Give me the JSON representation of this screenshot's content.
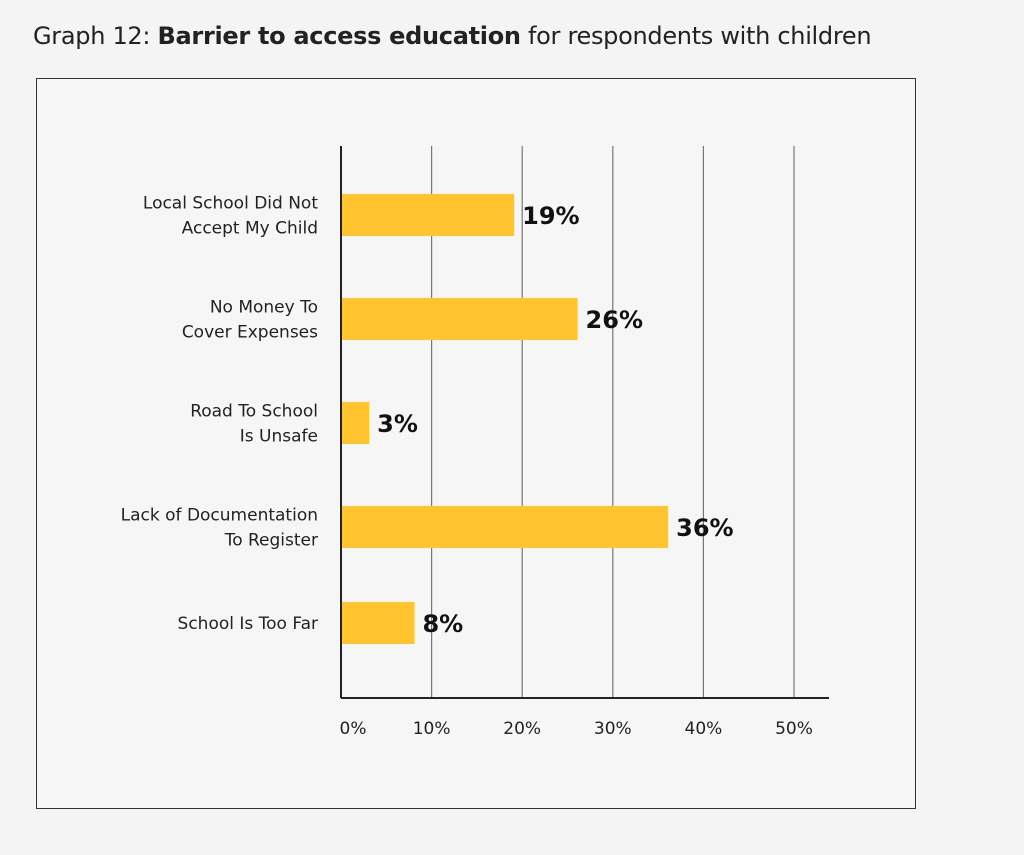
{
  "chart_data": {
    "type": "bar",
    "orientation": "horizontal",
    "title_prefix": "Graph 12: ",
    "title_bold": "Barrier to access education",
    "title_suffix": " for respondents with children",
    "categories": [
      [
        "Local School Did Not",
        "Accept My Child"
      ],
      [
        "No Money To",
        "Cover Expenses"
      ],
      [
        "Road To School",
        "Is Unsafe"
      ],
      [
        "Lack of Documentation",
        "To Register"
      ],
      [
        "School Is Too Far"
      ]
    ],
    "values": [
      19,
      26,
      3,
      36,
      8
    ],
    "value_labels": [
      "19%",
      "26%",
      "3%",
      "36%",
      "8%"
    ],
    "xticks": [
      "0%",
      "10%",
      "20%",
      "30%",
      "40%",
      "50%"
    ],
    "xlim": [
      0,
      50
    ],
    "grid": true,
    "bar_color": "#FFC42E"
  }
}
